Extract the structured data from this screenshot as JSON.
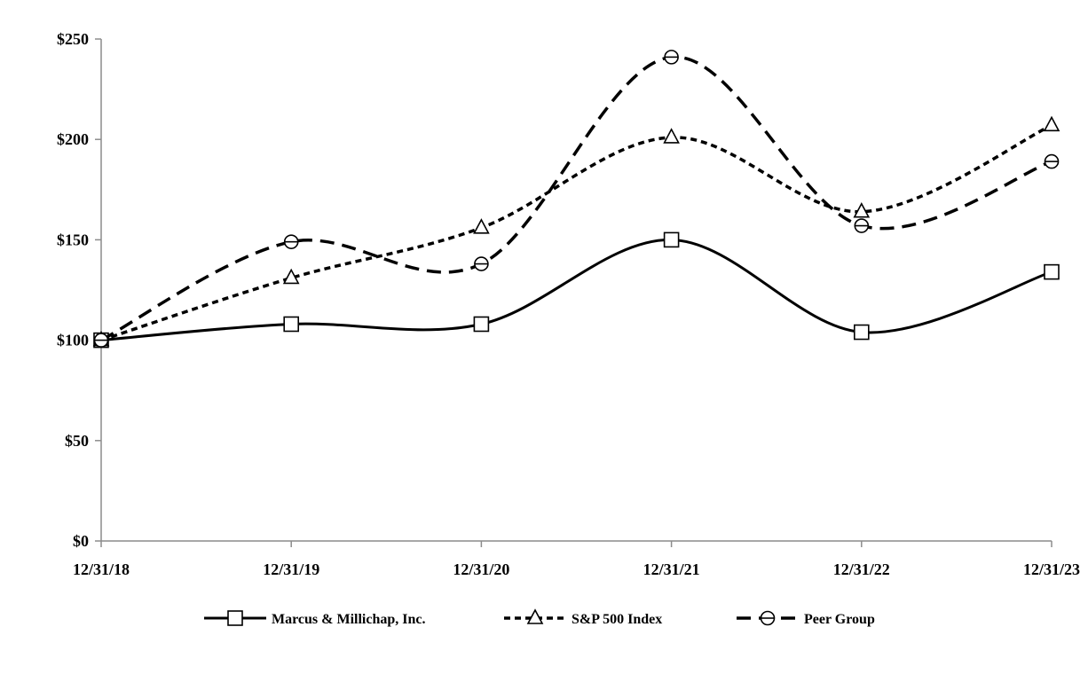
{
  "chart_data": {
    "type": "line",
    "title": "",
    "xlabel": "",
    "ylabel": "",
    "categories": [
      "12/31/18",
      "12/31/19",
      "12/31/20",
      "12/31/21",
      "12/31/22",
      "12/31/23"
    ],
    "ylim": [
      0,
      250
    ],
    "yticks": [
      0,
      50,
      100,
      150,
      200,
      250
    ],
    "ytick_labels": [
      "$0",
      "$50",
      "$100",
      "$150",
      "$200",
      "$250"
    ],
    "grid": false,
    "legend_position": "bottom",
    "series": [
      {
        "name": "Marcus & Millichap, Inc.",
        "values": [
          100,
          108,
          108,
          150,
          104,
          134
        ],
        "marker": "square",
        "line": "solid",
        "color": "#000000"
      },
      {
        "name": "S&P 500 Index",
        "values": [
          100,
          131,
          156,
          201,
          164,
          207
        ],
        "marker": "triangle",
        "line": "short-dash",
        "color": "#000000"
      },
      {
        "name": "Peer Group",
        "values": [
          100,
          149,
          138,
          241,
          157,
          189
        ],
        "marker": "circle",
        "line": "long-dash",
        "color": "#000000"
      }
    ]
  }
}
